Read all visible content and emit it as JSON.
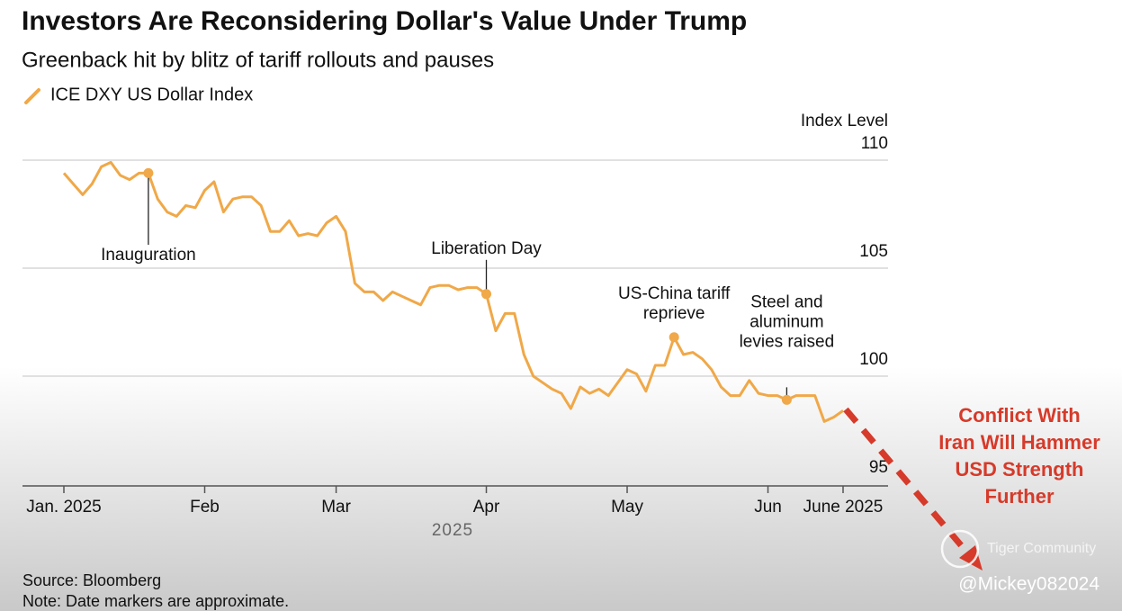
{
  "chart_data": {
    "type": "line",
    "title": "Investors Are Reconsidering Dollar's Value Under Trump",
    "subtitle": "Greenback hit by blitz of tariff rollouts and pauses",
    "series": [
      {
        "name": "ICE DXY US Dollar Index",
        "color": "#f0a848",
        "values": [
          109.4,
          108.9,
          108.4,
          108.9,
          109.7,
          109.9,
          109.3,
          109.1,
          109.4,
          109.4,
          108.2,
          107.6,
          107.4,
          107.9,
          107.8,
          108.6,
          109.0,
          107.6,
          108.2,
          108.3,
          108.3,
          107.9,
          106.7,
          106.7,
          107.2,
          106.5,
          106.6,
          106.5,
          107.1,
          107.4,
          106.7,
          104.3,
          103.9,
          103.9,
          103.5,
          103.9,
          103.7,
          103.5,
          103.3,
          104.1,
          104.2,
          104.2,
          104.0,
          104.1,
          104.1,
          103.8,
          102.1,
          102.9,
          102.9,
          101.0,
          100.0,
          99.7,
          99.4,
          99.2,
          98.5,
          99.5,
          99.2,
          99.4,
          99.1,
          99.7,
          100.3,
          100.1,
          99.3,
          100.5,
          100.5,
          101.8,
          101.0,
          101.1,
          100.8,
          100.3,
          99.5,
          99.1,
          99.1,
          99.8,
          99.2,
          99.1,
          99.1,
          98.9,
          99.1,
          99.1,
          99.1,
          97.9,
          98.1,
          98.4
        ]
      }
    ],
    "categories": [
      "Jan. 2025",
      null,
      null,
      null,
      null,
      null,
      null,
      null,
      null,
      null,
      null,
      null,
      null,
      null,
      null,
      "Feb",
      null,
      null,
      null,
      null,
      null,
      null,
      null,
      null,
      null,
      null,
      null,
      null,
      null,
      "Mar",
      null,
      null,
      null,
      null,
      null,
      null,
      null,
      null,
      null,
      null,
      null,
      null,
      null,
      null,
      null,
      "Apr",
      null,
      null,
      null,
      null,
      null,
      null,
      null,
      null,
      null,
      null,
      null,
      null,
      null,
      null,
      "May",
      null,
      null,
      null,
      null,
      null,
      null,
      null,
      null,
      null,
      null,
      null,
      null,
      null,
      null,
      "Jun",
      null,
      null,
      null,
      null,
      null,
      null,
      null,
      "June 2025"
    ],
    "x_sublabel": "2025",
    "y_label": "Index Level",
    "ylim": [
      95,
      110
    ],
    "yticks": [
      95,
      100,
      105,
      110
    ],
    "grid": true,
    "annotations": [
      {
        "lines": [
          "Inauguration"
        ],
        "at": 9,
        "placement": "below"
      },
      {
        "lines": [
          "Liberation Day"
        ],
        "at": 45,
        "placement": "above"
      },
      {
        "lines": [
          "US-China tariff",
          "reprieve"
        ],
        "at": 65,
        "placement": "above"
      },
      {
        "lines": [
          "Steel and",
          "aluminum",
          "levies raised"
        ],
        "at": 77,
        "placement": "above"
      }
    ],
    "source": "Source: Bloomberg",
    "note": "Note: Date markers are approximate."
  },
  "overlay": {
    "callout": [
      "Conflict With",
      "Iran Will Hammer",
      "USD Strength",
      "Further"
    ],
    "watermark": "Tiger Community",
    "handle": "@Mickey082024"
  }
}
